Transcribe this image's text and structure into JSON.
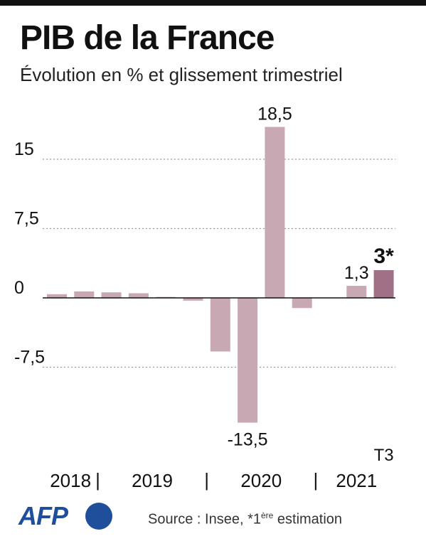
{
  "header": {
    "title": "PIB de la France",
    "subtitle": "Évolution en % et glissement trimestriel"
  },
  "footer": {
    "logo": "AFP",
    "source_prefix": "Source :  Insee, *1",
    "source_sup": "ère",
    "source_suffix": " estimation"
  },
  "colors": {
    "bar": "#c8a9b3",
    "bar_highlight": "#a07186",
    "grid": "#999999",
    "axis": "#111111",
    "text": "#111111",
    "brand": "#1f4e9a"
  },
  "chart_data": {
    "type": "bar",
    "title": "PIB de la France",
    "subtitle": "Évolution en % et glissement trimestriel",
    "ylim": [
      -13.5,
      18.5
    ],
    "yticks": [
      15,
      7.5,
      0,
      -7.5
    ],
    "ytick_labels": [
      "15",
      "7,5",
      "0",
      "-7,5"
    ],
    "grid": true,
    "values": [
      0.4,
      0.7,
      0.6,
      0.5,
      0.1,
      -0.3,
      -5.8,
      -13.5,
      18.5,
      -1.1,
      0.0,
      1.3,
      3.0
    ],
    "highlight_index": 12,
    "data_labels": [
      {
        "index": 7,
        "text": "-13,5",
        "position": "below"
      },
      {
        "index": 8,
        "text": "18,5",
        "position": "above"
      },
      {
        "index": 11,
        "text": "1,3",
        "position": "above"
      },
      {
        "index": 12,
        "text": "3*",
        "position": "above",
        "bold": true
      }
    ],
    "quarter_label": {
      "index": 12,
      "text": "T3"
    },
    "year_groups": [
      {
        "label": "2018",
        "start": 0,
        "end": 1
      },
      {
        "label": "2019",
        "start": 2,
        "end": 5
      },
      {
        "label": "2020",
        "start": 6,
        "end": 9
      },
      {
        "label": "2021",
        "start": 10,
        "end": 12
      }
    ],
    "year_separator": "|"
  }
}
